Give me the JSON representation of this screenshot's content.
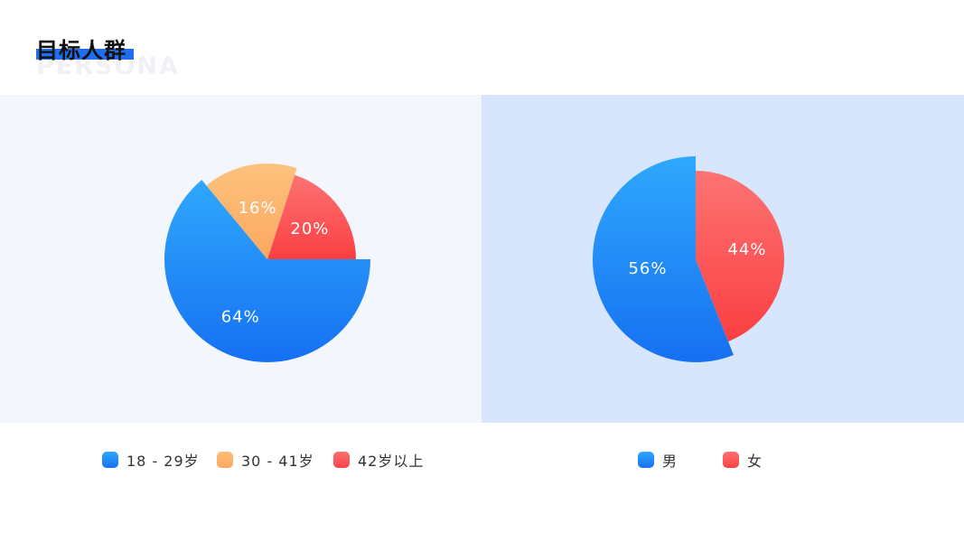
{
  "header": {
    "title": "目标人群",
    "subtitle": "PERSONA"
  },
  "colors": {
    "blue": "#1f7cf5",
    "orange": "#fdb56e",
    "red": "#fd5a5d",
    "accent_bar": "#1f6ef0"
  },
  "chart_data": [
    {
      "type": "pie",
      "title": "",
      "slices": [
        {
          "label": "18-29岁",
          "value": 64,
          "display": "64%",
          "color": "blue"
        },
        {
          "label": "30-41岁",
          "value": 16,
          "display": "16%",
          "color": "orange"
        },
        {
          "label": "42岁以上",
          "value": 20,
          "display": "20%",
          "color": "red"
        }
      ],
      "legend": [
        "18-29岁",
        "30-41岁",
        "42岁以上"
      ],
      "legend_placement": "bottom"
    },
    {
      "type": "pie",
      "title": "",
      "slices": [
        {
          "label": "男",
          "value": 56,
          "display": "56%",
          "color": "blue"
        },
        {
          "label": "女",
          "value": 44,
          "display": "44%",
          "color": "red"
        }
      ],
      "legend": [
        "男",
        "女"
      ],
      "legend_placement": "bottom"
    }
  ],
  "legend_left": [
    {
      "label": "18 - 29岁",
      "color": "blue"
    },
    {
      "label": "30 - 41岁",
      "color": "orange"
    },
    {
      "label": "42岁以上",
      "color": "red"
    }
  ],
  "legend_right": [
    {
      "label": "男",
      "color": "blue"
    },
    {
      "label": "女",
      "color": "red"
    }
  ]
}
